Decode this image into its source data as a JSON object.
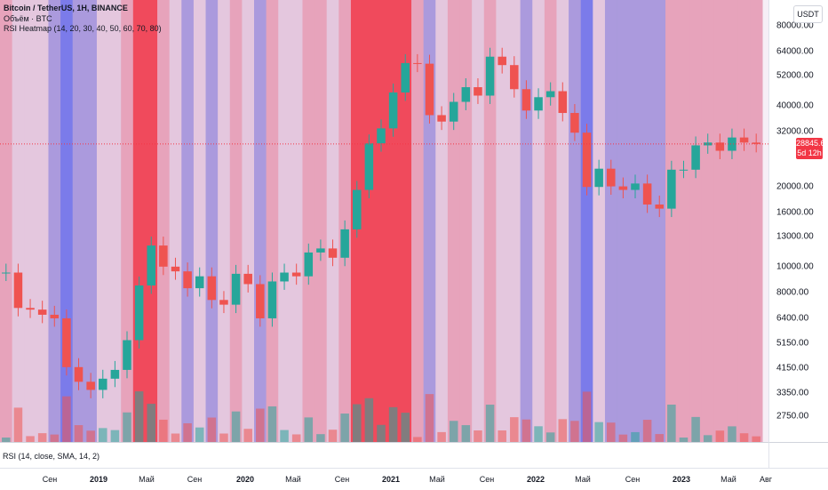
{
  "symbol": {
    "title": "Bitcoin / TetherUS, 1H, BINANCE",
    "volume_label": "Объём · BTC",
    "indicator_label": "RSI Heatmap (14, 20, 30, 40, 50, 60, 70, 80)",
    "quote_currency": "USDT"
  },
  "price_axis": {
    "scale": "log",
    "ticks": [
      "80000.00",
      "64000.00",
      "52000.00",
      "40000.00",
      "32000.00",
      "20000.00",
      "16000.00",
      "13000.00",
      "10000.00",
      "8000.00",
      "6400.00",
      "5150.00",
      "4150.00",
      "3350.00",
      "2750.00"
    ],
    "tick_values": [
      80000,
      64000,
      52000,
      40000,
      32000,
      20000,
      16000,
      13000,
      10000,
      8000,
      6400,
      5150,
      4150,
      3350,
      2750
    ],
    "range": [
      2200,
      100000
    ]
  },
  "last_price": {
    "value": "28845.60",
    "countdown": "5d 12h",
    "color": "#f23645"
  },
  "rsi_pane": {
    "label": "RSI (14, close, SMA, 14, 2)"
  },
  "time_axis": {
    "labels": [
      {
        "text": "Сен",
        "year": false
      },
      {
        "text": "2019",
        "year": true
      },
      {
        "text": "Май",
        "year": false
      },
      {
        "text": "Сен",
        "year": false
      },
      {
        "text": "2020",
        "year": true
      },
      {
        "text": "Май",
        "year": false
      },
      {
        "text": "Сен",
        "year": false
      },
      {
        "text": "2021",
        "year": true
      },
      {
        "text": "Май",
        "year": false
      },
      {
        "text": "Сен",
        "year": false
      },
      {
        "text": "2022",
        "year": true
      },
      {
        "text": "Май",
        "year": false
      },
      {
        "text": "Сен",
        "year": false
      },
      {
        "text": "2023",
        "year": true
      },
      {
        "text": "Май",
        "year": false
      },
      {
        "text": "Авг",
        "year": false
      }
    ]
  },
  "colors": {
    "up": "#26a69a",
    "down": "#ef5350",
    "heat_very_low": "#7b7bea",
    "heat_low": "#ab9add",
    "heat_mid": "#e4c7de",
    "heat_high": "#e7a3bb",
    "heat_very_high": "#f04a5c"
  },
  "chart_data": {
    "type": "candlestick",
    "x": [
      "2018-06",
      "2018-07",
      "2018-08",
      "2018-09",
      "2018-10",
      "2018-11",
      "2018-12",
      "2019-01",
      "2019-02",
      "2019-03",
      "2019-04",
      "2019-05",
      "2019-06",
      "2019-07",
      "2019-08",
      "2019-09",
      "2019-10",
      "2019-11",
      "2019-12",
      "2020-01",
      "2020-02",
      "2020-03",
      "2020-04",
      "2020-05",
      "2020-06",
      "2020-07",
      "2020-08",
      "2020-09",
      "2020-10",
      "2020-11",
      "2020-12",
      "2021-01",
      "2021-02",
      "2021-03",
      "2021-04",
      "2021-05",
      "2021-06",
      "2021-07",
      "2021-08",
      "2021-09",
      "2021-10",
      "2021-11",
      "2021-12",
      "2022-01",
      "2022-02",
      "2022-03",
      "2022-04",
      "2022-05",
      "2022-06",
      "2022-07",
      "2022-08",
      "2022-09",
      "2022-10",
      "2022-11",
      "2022-12",
      "2023-01",
      "2023-02",
      "2023-03",
      "2023-04",
      "2023-05",
      "2023-06",
      "2023-07",
      "2023-08"
    ],
    "close": [
      9500,
      7000,
      6900,
      6600,
      6400,
      4200,
      3700,
      3450,
      3800,
      4100,
      5300,
      8500,
      12000,
      10000,
      9600,
      8300,
      9200,
      7500,
      7200,
      9400,
      8600,
      6400,
      8800,
      9500,
      9200,
      11300,
      11700,
      10800,
      13800,
      19400,
      29000,
      33000,
      45000,
      58000,
      57700,
      37000,
      35000,
      41500,
      47100,
      43800,
      61300,
      57000,
      46300,
      38500,
      43200,
      45500,
      37700,
      31800,
      19900,
      23300,
      20000,
      19400,
      20500,
      17100,
      16500,
      23100,
      23100,
      28500,
      29200,
      27200,
      30500,
      29200,
      28845.6
    ],
    "heat_levels": [
      "high",
      "mid",
      "mid",
      "mid",
      "low",
      "very_low",
      "low",
      "low",
      "mid",
      "mid",
      "high",
      "very_high",
      "very_high",
      "high",
      "mid",
      "low",
      "mid",
      "low",
      "mid",
      "high",
      "mid",
      "low",
      "high",
      "mid",
      "mid",
      "high",
      "high",
      "mid",
      "high",
      "very_high",
      "very_high",
      "very_high",
      "very_high",
      "very_high",
      "high",
      "low",
      "mid",
      "high",
      "high",
      "mid",
      "high",
      "mid",
      "mid",
      "low",
      "mid",
      "high",
      "mid",
      "low",
      "very_low",
      "mid",
      "low",
      "low",
      "low",
      "low",
      "low",
      "high",
      "high",
      "high",
      "high",
      "high",
      "high",
      "high",
      "high"
    ]
  }
}
